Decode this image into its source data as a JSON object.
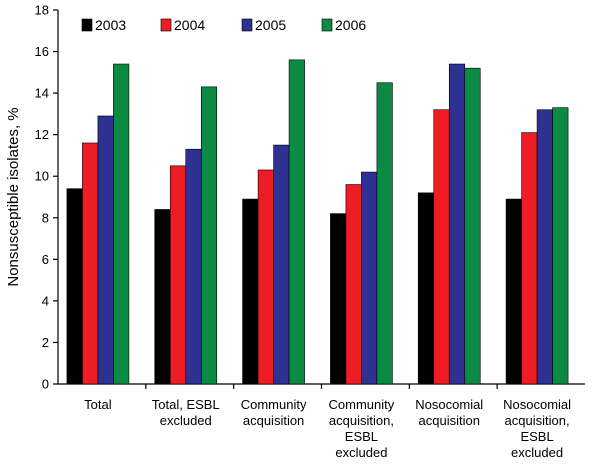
{
  "chart_data": {
    "type": "bar",
    "ylabel": "Nonsusceptible isolates, %",
    "ylim": [
      0,
      18
    ],
    "yticks": [
      0,
      2,
      4,
      6,
      8,
      10,
      12,
      14,
      16,
      18
    ],
    "legend_position": "top-left",
    "grid": false,
    "categories": [
      [
        "Total"
      ],
      [
        "Total, ESBL",
        "excluded"
      ],
      [
        "Community",
        "acquisition"
      ],
      [
        "Community",
        "acquisition,",
        "ESBL",
        "excluded"
      ],
      [
        "Nosocomial",
        "acquisition"
      ],
      [
        "Nosocomial",
        "acquisition,",
        "ESBL",
        "excluded"
      ]
    ],
    "series": [
      {
        "name": "2003",
        "color": "#000000",
        "values": [
          9.4,
          8.4,
          8.9,
          8.2,
          9.2,
          8.9
        ]
      },
      {
        "name": "2004",
        "color": "#ee1c24",
        "values": [
          11.6,
          10.5,
          10.3,
          9.6,
          13.2,
          12.1
        ]
      },
      {
        "name": "2005",
        "color": "#2e3192",
        "values": [
          12.9,
          11.3,
          11.5,
          10.2,
          15.4,
          13.2
        ]
      },
      {
        "name": "2006",
        "color": "#0b8a43",
        "values": [
          15.4,
          14.3,
          15.6,
          14.5,
          15.2,
          13.3
        ]
      }
    ]
  }
}
